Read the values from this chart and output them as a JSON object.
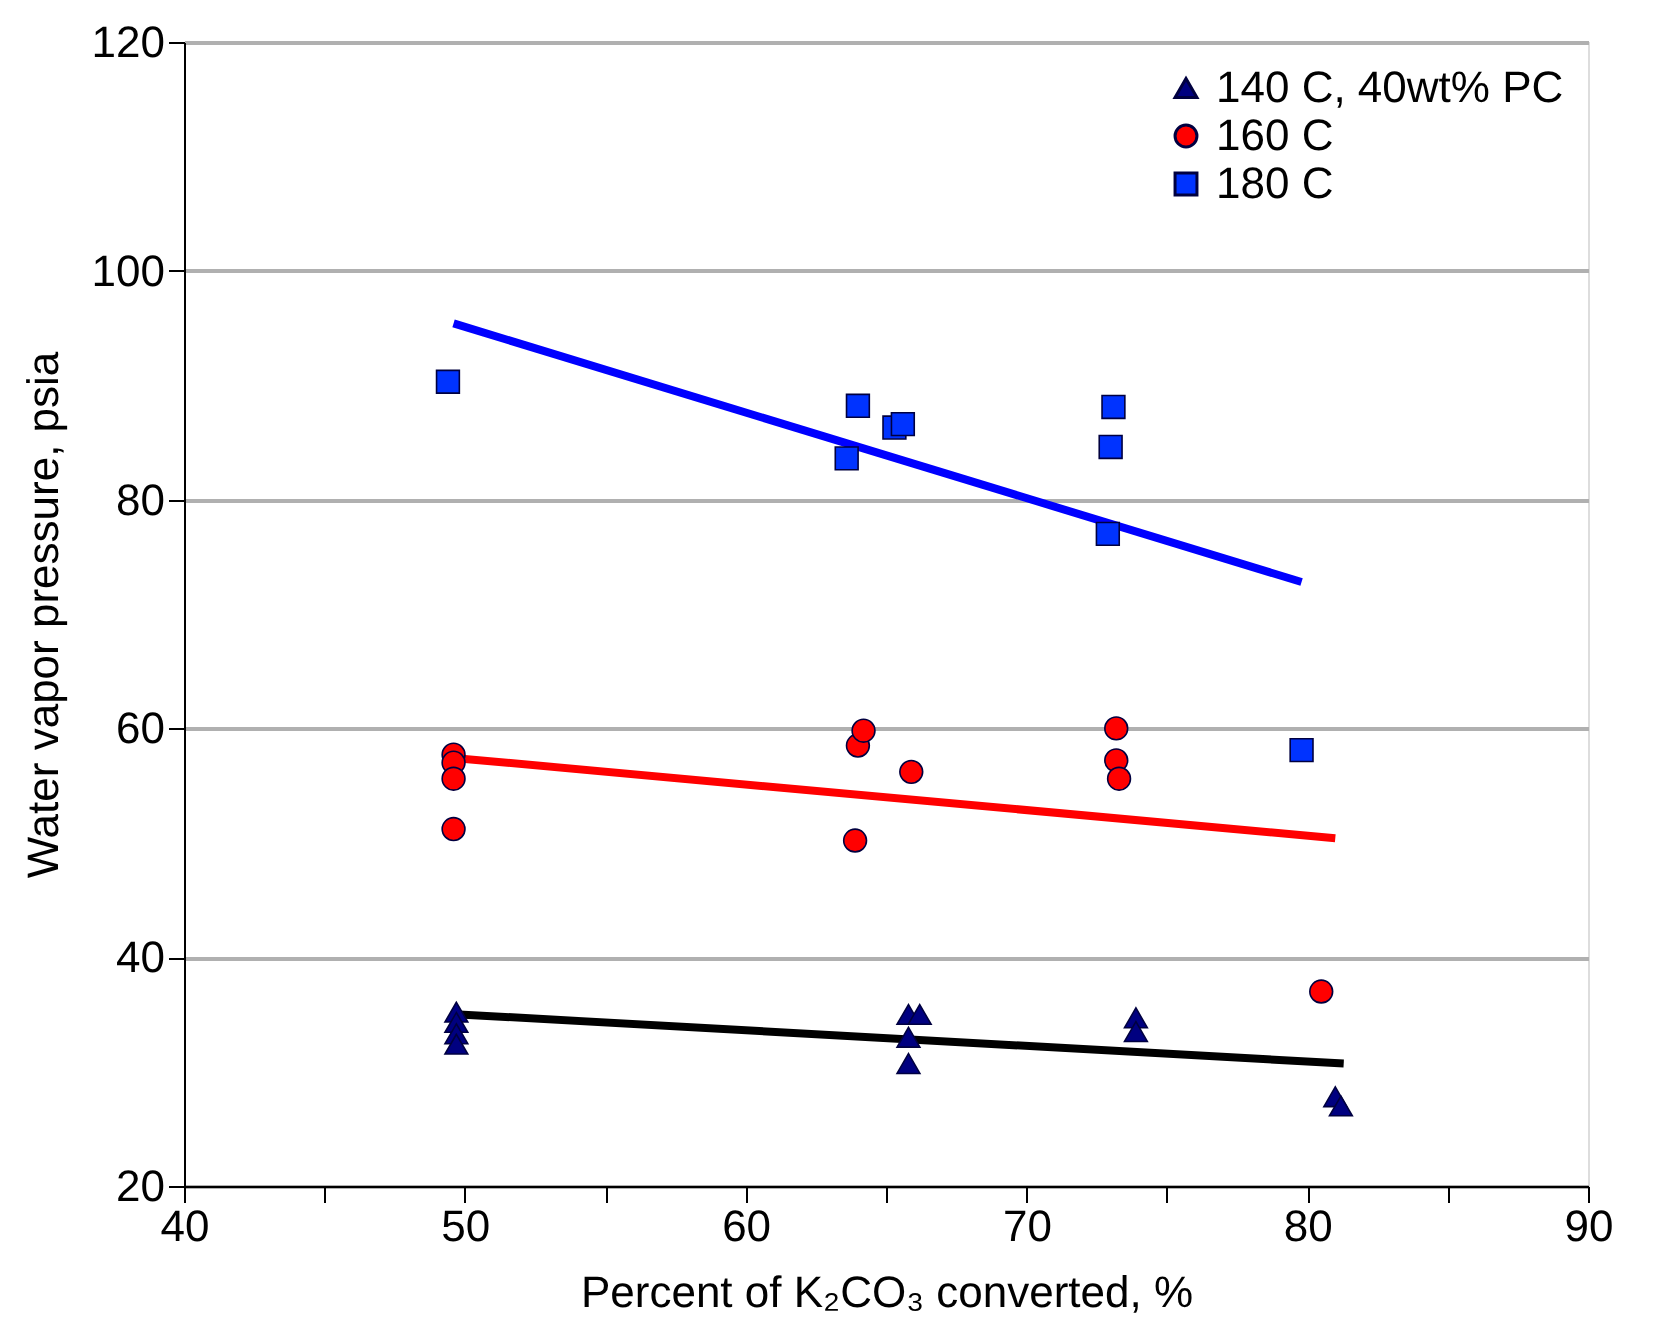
{
  "chart_data": {
    "type": "scatter",
    "xlabel": "Percent of K₂CO₃ converted, %",
    "ylabel": "Water vapor pressure, psia",
    "xlim": [
      40,
      90
    ],
    "xticks": [
      40,
      {
        "value": 45,
        "label": null
      },
      50,
      {
        "value": 55,
        "label": null
      },
      60,
      {
        "value": 65,
        "label": null
      },
      70,
      {
        "value": 75,
        "label": null
      },
      80,
      {
        "value": 85,
        "label": null
      },
      90
    ],
    "ylim": [
      20,
      120
    ],
    "yticks": [
      20,
      40,
      60,
      80,
      100,
      120
    ],
    "grid": "y",
    "legend": "top right",
    "series": [
      {
        "name": "140 C, 40wt% PC",
        "color": "#000080",
        "marker": "triangle",
        "x": [
          49.7,
          49.7,
          49.7,
          49.7,
          65.8,
          65.8,
          65.8,
          66.2,
          73.9,
          73.9,
          81.0,
          81.2
        ],
        "values": [
          35.2,
          34.3,
          33.3,
          32.4,
          35.0,
          30.7,
          33.0,
          35.0,
          34.7,
          33.5,
          27.8,
          27.0
        ]
      },
      {
        "name": "160 C",
        "color": "#ff0000",
        "marker": "circle",
        "x": [
          49.6,
          49.6,
          49.6,
          49.6,
          63.9,
          64.0,
          64.2,
          65.9,
          73.2,
          73.2,
          73.3,
          80.5
        ],
        "values": [
          57.7,
          57.0,
          55.6,
          51.2,
          50.2,
          58.5,
          59.8,
          56.2,
          60.0,
          57.2,
          55.6,
          37.0
        ]
      },
      {
        "name": "180 C",
        "color": "#0033ff",
        "marker": "square",
        "x": [
          49.4,
          63.6,
          64.0,
          65.3,
          65.6,
          72.9,
          73.0,
          73.1,
          79.8
        ],
        "values": [
          90.3,
          83.6,
          88.2,
          86.3,
          86.6,
          77.0,
          84.6,
          88.1,
          58.1
        ]
      },
      {
        "type": "line",
        "color": "#000000",
        "x": [
          49.8,
          81.3
        ],
        "values": [
          35.0,
          30.7
        ]
      },
      {
        "type": "line",
        "color": "#ff0000",
        "x": [
          49.7,
          81.0
        ],
        "values": [
          57.4,
          50.4
        ]
      },
      {
        "type": "line",
        "color": "#0000ff",
        "x": [
          49.6,
          79.8
        ],
        "values": [
          95.4,
          72.8
        ]
      }
    ]
  }
}
